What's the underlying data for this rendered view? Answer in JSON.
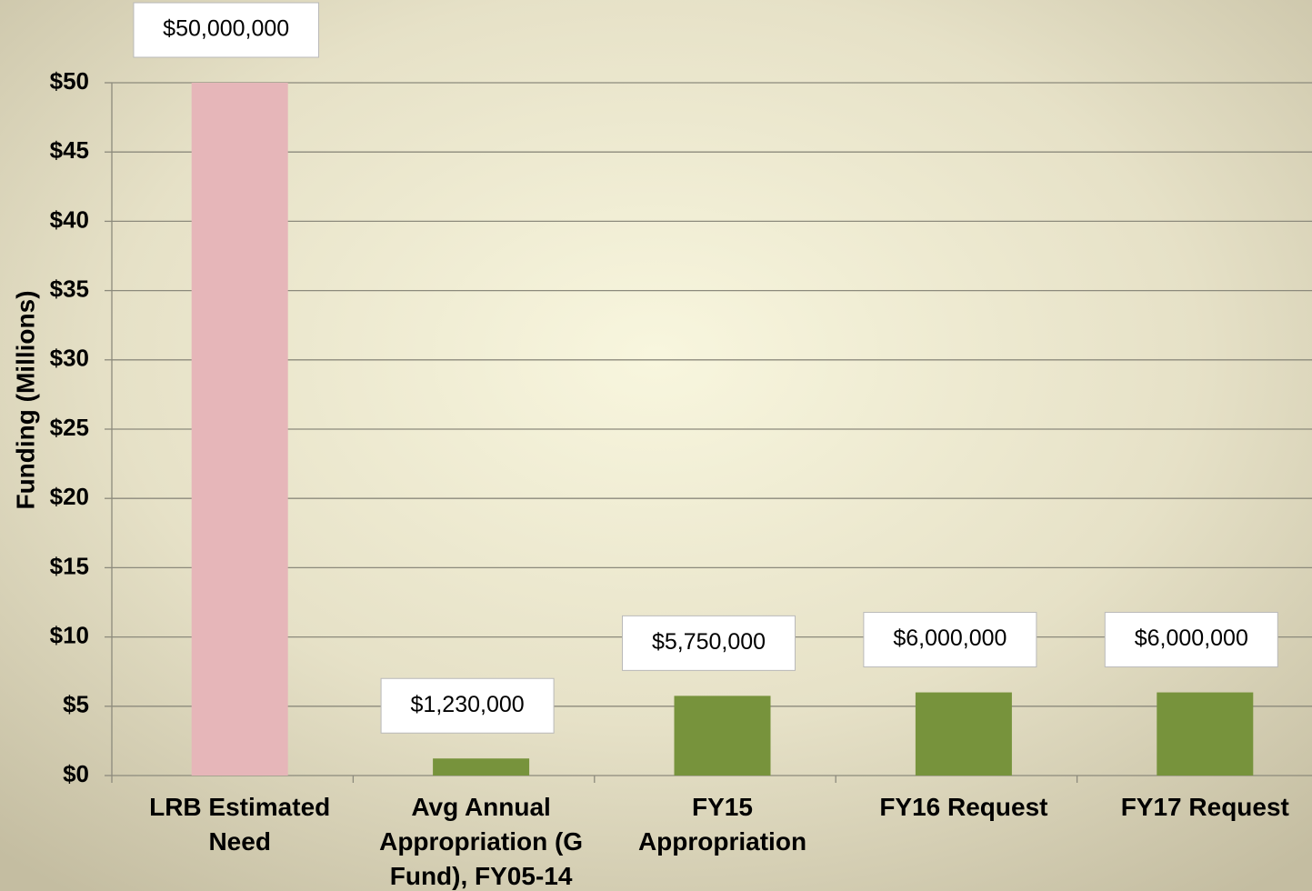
{
  "chart_data": {
    "type": "bar",
    "y_label": "Funding (Millions)",
    "categories": [
      "LRB Estimated Need",
      "Avg Annual Appropriation (G Fund), FY05-14",
      "FY15 Appropriation",
      "FY16 Request",
      "FY17 Request"
    ],
    "values": [
      50,
      1.23,
      5.75,
      6,
      6
    ],
    "value_labels": [
      "$50,000,000",
      "$1,230,000",
      "$5,750,000",
      "$6,000,000",
      "$6,000,000"
    ],
    "colors": [
      "#e6b6b9",
      "#77933c",
      "#77933c",
      "#77933c",
      "#77933c"
    ],
    "ylim": [
      0,
      50
    ],
    "yticks": [
      {
        "value": 0,
        "label": "$0"
      },
      {
        "value": 5,
        "label": "$5"
      },
      {
        "value": 10,
        "label": "$10"
      },
      {
        "value": 15,
        "label": "$15"
      },
      {
        "value": 20,
        "label": "$20"
      },
      {
        "value": 25,
        "label": "$25"
      },
      {
        "value": 30,
        "label": "$30"
      },
      {
        "value": 35,
        "label": "$35"
      },
      {
        "value": 40,
        "label": "$40"
      },
      {
        "value": 45,
        "label": "$45"
      },
      {
        "value": 50,
        "label": "$50"
      }
    ],
    "grid": true
  }
}
